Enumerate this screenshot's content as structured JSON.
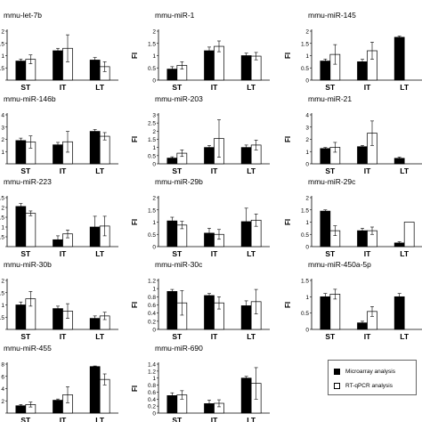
{
  "series": [
    {
      "name": "Microarray analysis",
      "color": "#000000"
    },
    {
      "name": "RT-qPCR analysis",
      "color": "#ffffff"
    }
  ],
  "chart_data": [
    {
      "type": "bar",
      "title": "mmu-let-7b",
      "ylabel": "",
      "categories": [
        "ST",
        "IT",
        "LT"
      ],
      "ylim": [
        0,
        2
      ],
      "yticks": [
        "",
        ".5",
        "1",
        ".5",
        "2"
      ],
      "series": [
        {
          "values": [
            0.78,
            1.2,
            0.82
          ],
          "errors": [
            0.08,
            0.1,
            0.1
          ]
        },
        {
          "values": [
            0.85,
            1.3,
            0.55
          ],
          "errors": [
            0.18,
            0.55,
            0.2
          ]
        }
      ]
    },
    {
      "type": "bar",
      "title": "mmu-miR-1",
      "ylabel": "FI",
      "categories": [
        "ST",
        "IT",
        "LT"
      ],
      "ylim": [
        0,
        2
      ],
      "yticks": [
        "0",
        "0.5",
        "1",
        "1.5",
        "2"
      ],
      "series": [
        {
          "values": [
            0.45,
            1.2,
            1.0
          ],
          "errors": [
            0.1,
            0.15,
            0.1
          ]
        },
        {
          "values": [
            0.6,
            1.38,
            0.98
          ],
          "errors": [
            0.15,
            0.22,
            0.15
          ]
        }
      ]
    },
    {
      "type": "bar",
      "title": "mmu-miR-145",
      "ylabel": "FI",
      "categories": [
        "ST",
        "IT",
        "LT"
      ],
      "ylim": [
        0,
        2
      ],
      "yticks": [
        "0",
        "0.5",
        "1",
        "1.5",
        "2"
      ],
      "series": [
        {
          "values": [
            0.78,
            0.75,
            1.75
          ],
          "errors": [
            0.08,
            0.1,
            0.05
          ]
        },
        {
          "values": [
            1.05,
            1.2,
            null
          ],
          "errors": [
            0.4,
            0.35,
            0
          ]
        }
      ]
    },
    {
      "type": "bar",
      "title": "mmu-miR-146b",
      "ylabel": "",
      "categories": [
        "ST",
        "IT",
        "LT"
      ],
      "ylim": [
        0,
        4
      ],
      "yticks": [
        "",
        "1",
        "2",
        "3",
        "4"
      ],
      "series": [
        {
          "values": [
            1.9,
            1.55,
            2.65
          ],
          "errors": [
            0.2,
            0.2,
            0.15
          ]
        },
        {
          "values": [
            1.78,
            1.8,
            2.25
          ],
          "errors": [
            0.5,
            0.85,
            0.3
          ]
        }
      ]
    },
    {
      "type": "bar",
      "title": "mmu-miR-203",
      "ylabel": "FI",
      "categories": [
        "ST",
        "IT",
        "LT"
      ],
      "ylim": [
        0,
        3
      ],
      "yticks": [
        "0",
        "0.5",
        "1",
        "1.5",
        "2",
        "2.5",
        "3"
      ],
      "series": [
        {
          "values": [
            0.35,
            1.0,
            1.0
          ],
          "errors": [
            0.08,
            0.12,
            0.15
          ]
        },
        {
          "values": [
            0.65,
            1.55,
            1.15
          ],
          "errors": [
            0.2,
            1.15,
            0.3
          ]
        }
      ]
    },
    {
      "type": "bar",
      "title": "mmu-miR-21",
      "ylabel": "FI",
      "categories": [
        "ST",
        "IT",
        "LT"
      ],
      "ylim": [
        0,
        4
      ],
      "yticks": [
        "0",
        "1",
        "2",
        "3",
        "4"
      ],
      "series": [
        {
          "values": [
            1.25,
            1.4,
            0.45
          ],
          "errors": [
            0.08,
            0.1,
            0.1
          ]
        },
        {
          "values": [
            1.35,
            2.5,
            null
          ],
          "errors": [
            0.4,
            1.0,
            0
          ]
        }
      ]
    },
    {
      "type": "bar",
      "title": "mmu-miR-223",
      "ylabel": "",
      "categories": [
        "ST",
        "IT",
        "LT"
      ],
      "ylim": [
        0,
        2.5
      ],
      "yticks": [
        "",
        "0.5",
        "1",
        "1.5",
        "2",
        "2.5"
      ],
      "series": [
        {
          "values": [
            2.05,
            0.35,
            1.0
          ],
          "errors": [
            0.15,
            0.2,
            0.55
          ]
        },
        {
          "values": [
            1.7,
            0.65,
            1.05
          ],
          "errors": [
            0.12,
            0.2,
            0.5
          ]
        }
      ]
    },
    {
      "type": "bar",
      "title": "mmu-miR-29b",
      "ylabel": "FI",
      "categories": [
        "ST",
        "IT",
        "LT"
      ],
      "ylim": [
        0,
        2
      ],
      "yticks": [
        "0",
        "0.5",
        "1",
        "1.5",
        "2"
      ],
      "series": [
        {
          "values": [
            1.05,
            0.55,
            1.02
          ],
          "errors": [
            0.15,
            0.2,
            0.55
          ]
        },
        {
          "values": [
            0.88,
            0.5,
            1.08
          ],
          "errors": [
            0.15,
            0.2,
            0.25
          ]
        }
      ]
    },
    {
      "type": "bar",
      "title": "mmu-miR-29c",
      "ylabel": "FI",
      "categories": [
        "ST",
        "IT",
        "LT"
      ],
      "ylim": [
        0,
        2
      ],
      "yticks": [
        "0",
        "0.5",
        "1",
        "1.5",
        "2"
      ],
      "series": [
        {
          "values": [
            1.45,
            0.65,
            0.15
          ],
          "errors": [
            0.05,
            0.1,
            0.05
          ]
        },
        {
          "values": [
            0.65,
            0.65,
            1.0
          ],
          "errors": [
            0.2,
            0.15,
            0
          ]
        }
      ]
    },
    {
      "type": "bar",
      "title": "mmu-miR-30b",
      "ylabel": "",
      "categories": [
        "ST",
        "IT",
        "LT"
      ],
      "ylim": [
        0,
        2
      ],
      "yticks": [
        "",
        "0.5",
        "1",
        "1.5",
        "2"
      ],
      "series": [
        {
          "values": [
            1.0,
            0.85,
            0.45
          ],
          "errors": [
            0.12,
            0.1,
            0.1
          ]
        },
        {
          "values": [
            1.25,
            0.75,
            0.55
          ],
          "errors": [
            0.3,
            0.3,
            0.15
          ]
        }
      ]
    },
    {
      "type": "bar",
      "title": "mmu-miR-30c",
      "ylabel": "FI",
      "categories": [
        "ST",
        "IT",
        "LT"
      ],
      "ylim": [
        0,
        1.2
      ],
      "yticks": [
        "0",
        "0.2",
        "0.4",
        "0.6",
        "0.8",
        "1",
        "1.2"
      ],
      "series": [
        {
          "values": [
            0.93,
            0.83,
            0.58
          ],
          "errors": [
            0.05,
            0.05,
            0.12
          ]
        },
        {
          "values": [
            0.65,
            0.65,
            0.68
          ],
          "errors": [
            0.3,
            0.15,
            0.3
          ]
        }
      ]
    },
    {
      "type": "bar",
      "title": "mmu-miR-450a-5p",
      "ylabel": "FI",
      "categories": [
        "ST",
        "IT",
        "LT"
      ],
      "ylim": [
        0,
        1.5
      ],
      "yticks": [
        "0",
        "0.5",
        "1",
        "1.5"
      ],
      "series": [
        {
          "values": [
            1.0,
            0.2,
            1.0
          ],
          "errors": [
            0.1,
            0.05,
            0.1
          ]
        },
        {
          "values": [
            1.08,
            0.55,
            null
          ],
          "errors": [
            0.15,
            0.15,
            0
          ]
        }
      ]
    },
    {
      "type": "bar",
      "title": "mmu-miR-455",
      "ylabel": "",
      "categories": [
        "ST",
        "IT",
        "LT"
      ],
      "ylim": [
        0,
        8
      ],
      "yticks": [
        "",
        "2",
        "4",
        "6",
        "8"
      ],
      "series": [
        {
          "values": [
            1.2,
            2.1,
            7.6
          ],
          "errors": [
            0.2,
            0.2,
            0.1
          ]
        },
        {
          "values": [
            1.4,
            3.0,
            5.5
          ],
          "errors": [
            0.4,
            1.3,
            0.9
          ]
        }
      ]
    },
    {
      "type": "bar",
      "title": "mmu-miR-690",
      "ylabel": "FI",
      "categories": [
        "ST",
        "IT",
        "LT"
      ],
      "ylim": [
        0,
        1.4
      ],
      "yticks": [
        "0",
        "0.2",
        "0.4",
        "0.6",
        "0.8",
        "1",
        "1.2",
        "1.4"
      ],
      "series": [
        {
          "values": [
            0.5,
            0.27,
            1.0
          ],
          "errors": [
            0.08,
            0.1,
            0.05
          ]
        },
        {
          "values": [
            0.52,
            0.28,
            0.85
          ],
          "errors": [
            0.12,
            0.1,
            0.45
          ]
        }
      ]
    }
  ]
}
